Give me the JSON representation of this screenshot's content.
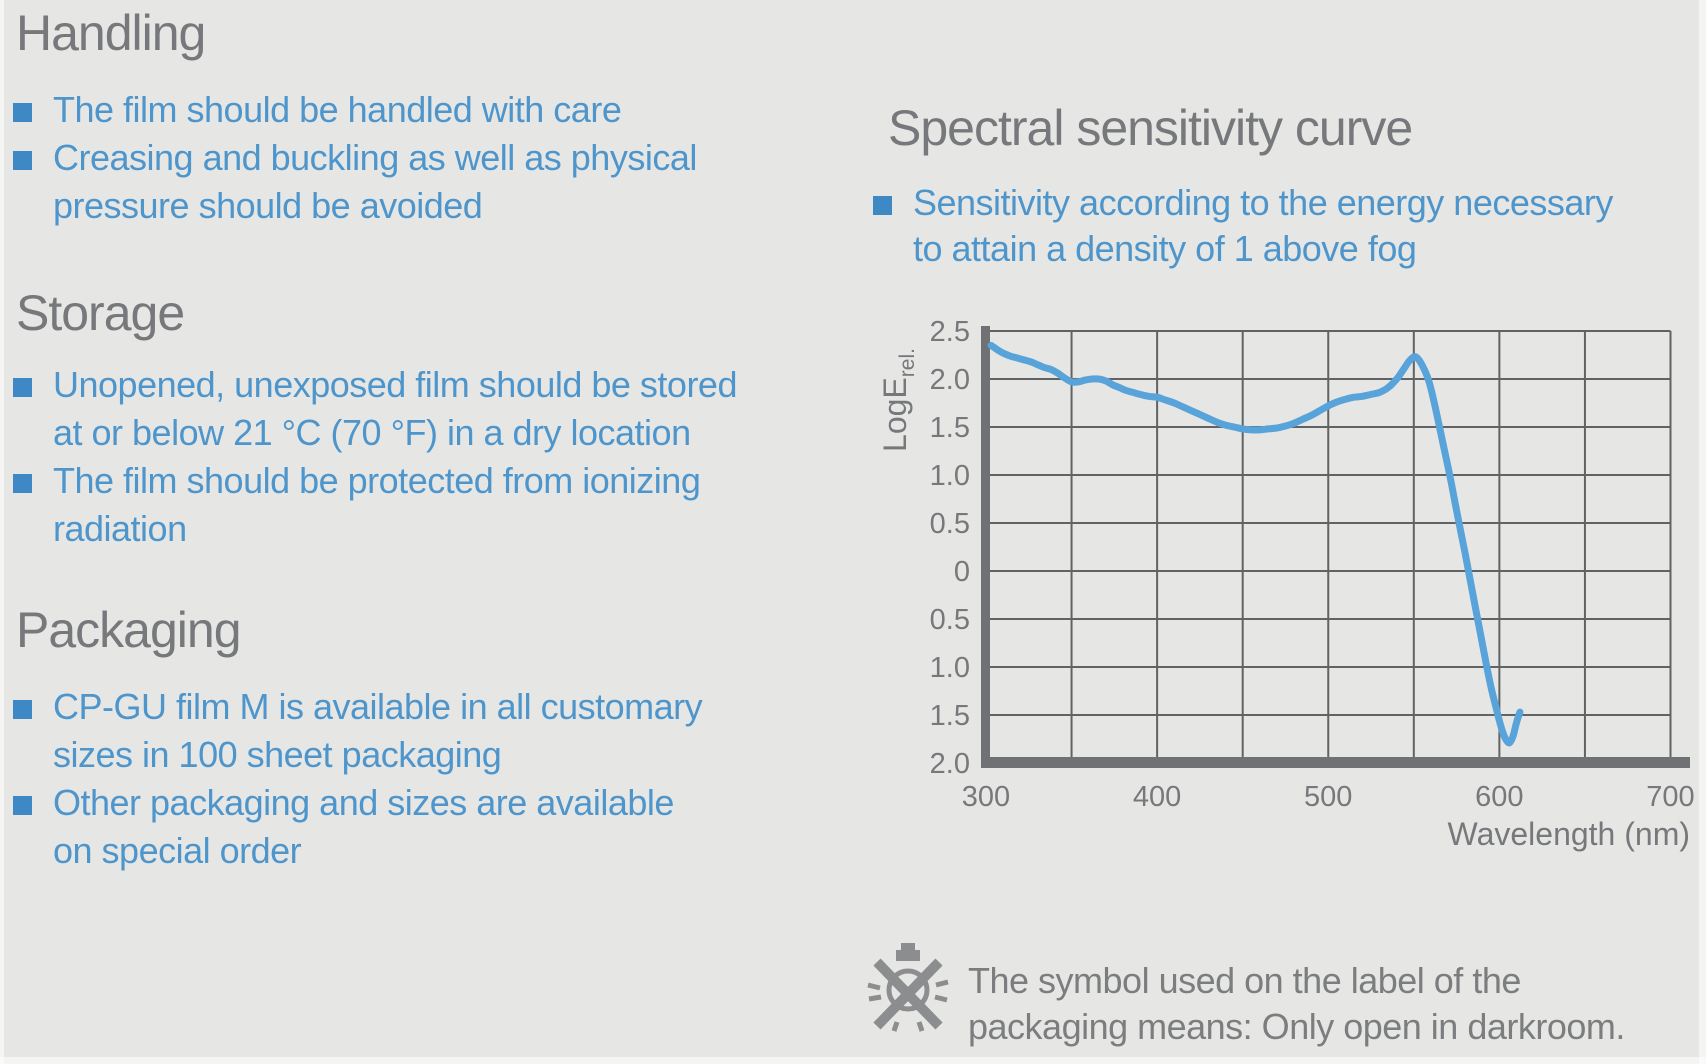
{
  "left": {
    "sections": [
      {
        "heading": "Handling",
        "items": [
          {
            "lines": [
              "The film should be handled with care"
            ]
          },
          {
            "lines": [
              "Creasing and buckling as well as physical",
              "pressure should be avoided"
            ]
          }
        ]
      },
      {
        "heading": "Storage",
        "items": [
          {
            "lines": [
              "Unopened, unexposed film should be stored",
              "at or below 21 °C (70 °F) in a dry location"
            ]
          },
          {
            "lines": [
              "The film should be protected from ionizing",
              "radiation"
            ]
          }
        ]
      },
      {
        "heading": "Packaging",
        "items": [
          {
            "lines": [
              "CP-GU film M is available in all customary",
              "sizes in 100 sheet packaging"
            ]
          },
          {
            "lines": [
              "Other packaging and sizes are available",
              "on special order"
            ]
          }
        ]
      }
    ]
  },
  "right": {
    "heading": "Spectral sensitivity curve",
    "items": [
      {
        "lines": [
          "Sensitivity according to the energy necessary",
          "to attain a density of 1 above fog"
        ]
      }
    ],
    "note": {
      "icon": "crossed-out-bulb-icon",
      "lines": [
        "The symbol used on the label of the",
        "packaging means: Only open in darkroom."
      ]
    }
  },
  "chart_data": {
    "type": "line",
    "title": "Spectral sensitivity curve",
    "xlabel": "Wavelength (nm)",
    "ylabel": "LogE",
    "ylabel_subscript": "rel.",
    "xlim": [
      300,
      700
    ],
    "ylim": [
      -2.0,
      2.5
    ],
    "x_ticks": [
      300,
      400,
      500,
      600,
      700
    ],
    "x_tick_labels": [
      "300",
      "400",
      "500",
      "600",
      "700"
    ],
    "y_ticks": [
      2.5,
      2.0,
      1.5,
      1.0,
      0.5,
      0,
      -0.5,
      -1.0,
      -1.5,
      -2.0
    ],
    "y_tick_labels": [
      "2.5",
      "2.0",
      "1.5",
      "1.0",
      "0.5",
      "0",
      "0.5",
      "1.0",
      "1.5",
      "2.0"
    ],
    "x_grid_step": 50,
    "y_grid_step": 0.5,
    "grid": true,
    "legend": "none",
    "series": [
      {
        "name": "spectral sensitivity (LogE rel. vs wavelength)",
        "points": [
          [
            303,
            2.35
          ],
          [
            307,
            2.3
          ],
          [
            310,
            2.27
          ],
          [
            314,
            2.24
          ],
          [
            318,
            2.22
          ],
          [
            322,
            2.2
          ],
          [
            326,
            2.18
          ],
          [
            330,
            2.15
          ],
          [
            334,
            2.12
          ],
          [
            338,
            2.1
          ],
          [
            342,
            2.06
          ],
          [
            346,
            2.01
          ],
          [
            350,
            1.97
          ],
          [
            354,
            1.97
          ],
          [
            358,
            1.99
          ],
          [
            362,
            2.0
          ],
          [
            366,
            2.0
          ],
          [
            370,
            1.98
          ],
          [
            374,
            1.94
          ],
          [
            378,
            1.91
          ],
          [
            382,
            1.88
          ],
          [
            386,
            1.86
          ],
          [
            390,
            1.84
          ],
          [
            395,
            1.82
          ],
          [
            400,
            1.81
          ],
          [
            405,
            1.78
          ],
          [
            410,
            1.75
          ],
          [
            415,
            1.71
          ],
          [
            420,
            1.67
          ],
          [
            425,
            1.63
          ],
          [
            430,
            1.59
          ],
          [
            435,
            1.55
          ],
          [
            440,
            1.52
          ],
          [
            445,
            1.5
          ],
          [
            450,
            1.48
          ],
          [
            455,
            1.47
          ],
          [
            460,
            1.47
          ],
          [
            465,
            1.48
          ],
          [
            470,
            1.49
          ],
          [
            475,
            1.51
          ],
          [
            480,
            1.54
          ],
          [
            485,
            1.58
          ],
          [
            490,
            1.62
          ],
          [
            495,
            1.67
          ],
          [
            500,
            1.72
          ],
          [
            505,
            1.76
          ],
          [
            510,
            1.79
          ],
          [
            515,
            1.81
          ],
          [
            520,
            1.82
          ],
          [
            525,
            1.84
          ],
          [
            530,
            1.86
          ],
          [
            535,
            1.91
          ],
          [
            540,
            2.0
          ],
          [
            544,
            2.1
          ],
          [
            547,
            2.18
          ],
          [
            550,
            2.23
          ],
          [
            552,
            2.22
          ],
          [
            555,
            2.14
          ],
          [
            558,
            2.02
          ],
          [
            560,
            1.9
          ],
          [
            562,
            1.75
          ],
          [
            565,
            1.5
          ],
          [
            568,
            1.25
          ],
          [
            571,
            1.0
          ],
          [
            574,
            0.72
          ],
          [
            577,
            0.45
          ],
          [
            580,
            0.18
          ],
          [
            583,
            -0.1
          ],
          [
            586,
            -0.38
          ],
          [
            589,
            -0.66
          ],
          [
            592,
            -0.94
          ],
          [
            595,
            -1.2
          ],
          [
            598,
            -1.42
          ],
          [
            600,
            -1.56
          ],
          [
            602,
            -1.68
          ],
          [
            604,
            -1.76
          ],
          [
            606,
            -1.79
          ],
          [
            608,
            -1.72
          ],
          [
            610,
            -1.58
          ],
          [
            612,
            -1.47
          ]
        ]
      }
    ]
  },
  "colors": {
    "background": "#e6e7e5",
    "heading_gray": "#77787b",
    "accent_blue": "#4e95cb",
    "bullet_blue": "#3e88c6",
    "note_gray": "#7c7d7f",
    "symbol_gray": "#8c8d8f",
    "grid_gray": "#616264",
    "axis_gray": "#6f7174",
    "curve_blue": "#58a3d9"
  }
}
